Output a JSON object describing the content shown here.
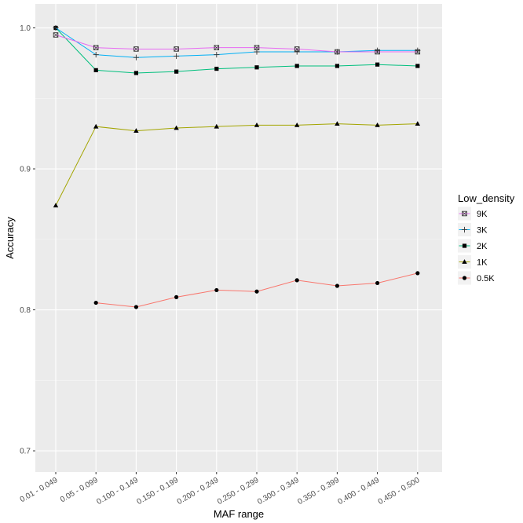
{
  "chart_data": {
    "type": "line",
    "xlabel": "MAF range",
    "ylabel": "Accuracy",
    "categories": [
      "0.01 - 0.049",
      "0.05 - 0.099",
      "0.100 - 0.149",
      "0.150 - 0.199",
      "0.200 - 0.249",
      "0.250 - 0.299",
      "0.300 - 0.349",
      "0.350 - 0.399",
      "0.400 - 0.449",
      "0.450 - 0.500"
    ],
    "ylim": [
      0.685,
      1.017
    ],
    "yticks": [
      "0.7",
      "0.8",
      "0.9",
      "1.0"
    ],
    "ytick_values": [
      0.7,
      0.8,
      0.9,
      1.0
    ],
    "legend_title": "Low_density",
    "legend_position": "right",
    "grid": true,
    "series": [
      {
        "name": "9K",
        "color": "#E76BF3",
        "shape": "square-cross",
        "values": [
          0.995,
          0.986,
          0.985,
          0.985,
          0.986,
          0.986,
          0.985,
          0.983,
          0.983,
          0.983
        ]
      },
      {
        "name": "3K",
        "color": "#00B0F6",
        "shape": "plus",
        "values": [
          1.0,
          0.981,
          0.979,
          0.98,
          0.981,
          0.983,
          0.983,
          0.983,
          0.984,
          0.984
        ]
      },
      {
        "name": "2K",
        "color": "#00BF7D",
        "shape": "square",
        "values": [
          1.0,
          0.97,
          0.968,
          0.969,
          0.971,
          0.972,
          0.973,
          0.973,
          0.974,
          0.973
        ]
      },
      {
        "name": "1K",
        "color": "#A3A500",
        "shape": "triangle",
        "values": [
          0.874,
          0.93,
          0.927,
          0.929,
          0.93,
          0.931,
          0.931,
          0.932,
          0.931,
          0.932
        ]
      },
      {
        "name": "0.5K",
        "color": "#F8766D",
        "shape": "circle",
        "values": [
          null,
          0.805,
          0.802,
          0.809,
          0.814,
          0.813,
          0.821,
          0.817,
          0.819,
          0.826
        ]
      }
    ]
  }
}
